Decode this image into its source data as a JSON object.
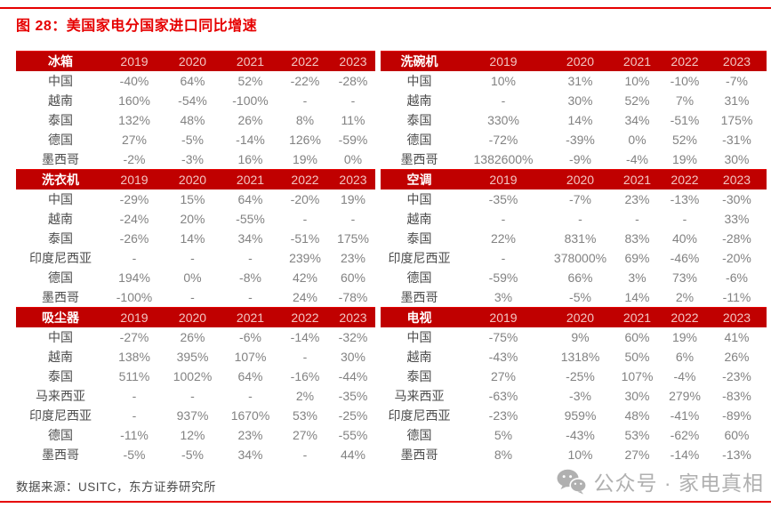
{
  "title": "图 28：美国家电分国家进口同比增速",
  "chart_data": [
    {
      "type": "table",
      "category": "冰箱",
      "columns": [
        "2019",
        "2020",
        "2021",
        "2022",
        "2023"
      ],
      "rows": [
        {
          "country": "中国",
          "values": [
            "-40%",
            "64%",
            "52%",
            "-22%",
            "-28%"
          ]
        },
        {
          "country": "越南",
          "values": [
            "160%",
            "-54%",
            "-100%",
            "-",
            "-"
          ]
        },
        {
          "country": "泰国",
          "values": [
            "132%",
            "48%",
            "26%",
            "8%",
            "11%"
          ]
        },
        {
          "country": "德国",
          "values": [
            "27%",
            "-5%",
            "-14%",
            "126%",
            "-59%"
          ]
        },
        {
          "country": "墨西哥",
          "values": [
            "-2%",
            "-3%",
            "16%",
            "19%",
            "0%"
          ]
        }
      ]
    },
    {
      "type": "table",
      "category": "洗碗机",
      "columns": [
        "2019",
        "2020",
        "2021",
        "2022",
        "2023"
      ],
      "rows": [
        {
          "country": "中国",
          "values": [
            "10%",
            "31%",
            "10%",
            "-10%",
            "-7%"
          ]
        },
        {
          "country": "越南",
          "values": [
            "-",
            "30%",
            "52%",
            "7%",
            "31%"
          ]
        },
        {
          "country": "泰国",
          "values": [
            "330%",
            "14%",
            "34%",
            "-51%",
            "175%"
          ]
        },
        {
          "country": "德国",
          "values": [
            "-72%",
            "-39%",
            "0%",
            "52%",
            "-31%"
          ]
        },
        {
          "country": "墨西哥",
          "values": [
            "1382600%",
            "-9%",
            "-4%",
            "19%",
            "30%"
          ]
        }
      ]
    },
    {
      "type": "table",
      "category": "洗衣机",
      "columns": [
        "2019",
        "2020",
        "2021",
        "2022",
        "2023"
      ],
      "rows": [
        {
          "country": "中国",
          "values": [
            "-29%",
            "15%",
            "64%",
            "-20%",
            "19%"
          ]
        },
        {
          "country": "越南",
          "values": [
            "-24%",
            "20%",
            "-55%",
            "-",
            "-"
          ]
        },
        {
          "country": "泰国",
          "values": [
            "-26%",
            "14%",
            "34%",
            "-51%",
            "175%"
          ]
        },
        {
          "country": "印度尼西亚",
          "values": [
            "-",
            "-",
            "-",
            "239%",
            "23%"
          ]
        },
        {
          "country": "德国",
          "values": [
            "194%",
            "0%",
            "-8%",
            "42%",
            "60%"
          ]
        },
        {
          "country": "墨西哥",
          "values": [
            "-100%",
            "-",
            "-",
            "24%",
            "-78%"
          ]
        }
      ]
    },
    {
      "type": "table",
      "category": "空调",
      "columns": [
        "2019",
        "2020",
        "2021",
        "2022",
        "2023"
      ],
      "rows": [
        {
          "country": "中国",
          "values": [
            "-35%",
            "-7%",
            "23%",
            "-13%",
            "-30%"
          ]
        },
        {
          "country": "越南",
          "values": [
            "-",
            "-",
            "-",
            "-",
            "33%"
          ]
        },
        {
          "country": "泰国",
          "values": [
            "22%",
            "831%",
            "83%",
            "40%",
            "-28%"
          ]
        },
        {
          "country": "印度尼西亚",
          "values": [
            "-",
            "378000%",
            "69%",
            "-46%",
            "-20%"
          ]
        },
        {
          "country": "德国",
          "values": [
            "-59%",
            "66%",
            "3%",
            "73%",
            "-6%"
          ]
        },
        {
          "country": "墨西哥",
          "values": [
            "3%",
            "-5%",
            "14%",
            "2%",
            "-11%"
          ]
        }
      ]
    },
    {
      "type": "table",
      "category": "吸尘器",
      "columns": [
        "2019",
        "2020",
        "2021",
        "2022",
        "2023"
      ],
      "rows": [
        {
          "country": "中国",
          "values": [
            "-27%",
            "26%",
            "-6%",
            "-14%",
            "-32%"
          ]
        },
        {
          "country": "越南",
          "values": [
            "138%",
            "395%",
            "107%",
            "-",
            "30%"
          ]
        },
        {
          "country": "泰国",
          "values": [
            "511%",
            "1002%",
            "64%",
            "-16%",
            "-44%"
          ]
        },
        {
          "country": "马来西亚",
          "values": [
            "-",
            "-",
            "-",
            "2%",
            "-35%"
          ]
        },
        {
          "country": "印度尼西亚",
          "values": [
            "-",
            "937%",
            "1670%",
            "53%",
            "-25%"
          ]
        },
        {
          "country": "德国",
          "values": [
            "-11%",
            "12%",
            "23%",
            "27%",
            "-55%"
          ]
        },
        {
          "country": "墨西哥",
          "values": [
            "-5%",
            "-5%",
            "34%",
            "-",
            "44%"
          ]
        }
      ]
    },
    {
      "type": "table",
      "category": "电视",
      "columns": [
        "2019",
        "2020",
        "2021",
        "2022",
        "2023"
      ],
      "rows": [
        {
          "country": "中国",
          "values": [
            "-75%",
            "9%",
            "60%",
            "19%",
            "41%"
          ]
        },
        {
          "country": "越南",
          "values": [
            "-43%",
            "1318%",
            "50%",
            "6%",
            "26%"
          ]
        },
        {
          "country": "泰国",
          "values": [
            "27%",
            "-25%",
            "107%",
            "-4%",
            "-23%"
          ]
        },
        {
          "country": "马来西亚",
          "values": [
            "-63%",
            "-3%",
            "30%",
            "279%",
            "-83%"
          ]
        },
        {
          "country": "印度尼西亚",
          "values": [
            "-23%",
            "959%",
            "48%",
            "-41%",
            "-89%"
          ]
        },
        {
          "country": "德国",
          "values": [
            "5%",
            "-43%",
            "53%",
            "-62%",
            "60%"
          ]
        },
        {
          "country": "墨西哥",
          "values": [
            "8%",
            "10%",
            "27%",
            "-14%",
            "-13%"
          ]
        }
      ]
    }
  ],
  "footer": {
    "source": "数据来源：USITC，东方证券研究所",
    "watermark_text": "公众号 · 家电真相",
    "watermark_icon": "wechat-icon"
  },
  "colors": {
    "rule_red": "#e60000",
    "title_red": "#e60000",
    "header_bg_red": "#c00000",
    "header_year_pink": "#f2c5c1",
    "header_category_white": "#ffffff",
    "country_gray": "#4d4d4d",
    "value_gray": "#828282",
    "source_gray": "#4a4a4a",
    "watermark_gray": "#b0b0b0"
  }
}
